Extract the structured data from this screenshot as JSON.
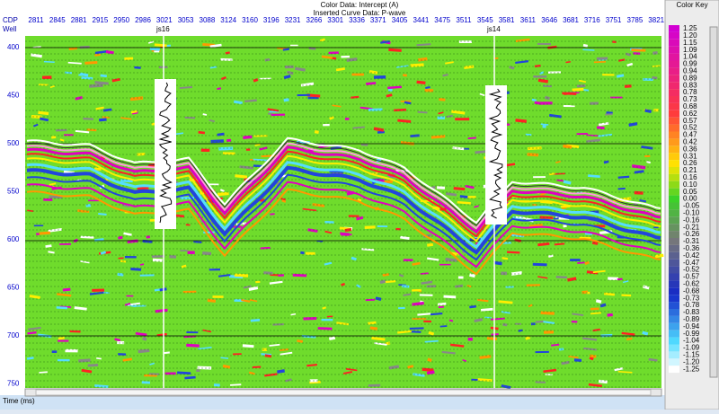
{
  "header": {
    "color_data": "Color Data: Intercept (A)",
    "curve_data": "Inserted Curve Data: P-wave"
  },
  "axis": {
    "cdp_title": "CDP",
    "well_title": "Well",
    "time_title": "Time (ms)",
    "cdp_labels": [
      "2811",
      "2845",
      "2881",
      "2915",
      "2950",
      "2986",
      "3021",
      "3053",
      "3088",
      "3124",
      "3160",
      "3196",
      "3231",
      "3266",
      "3301",
      "3336",
      "3371",
      "3405",
      "3441",
      "3475",
      "3511",
      "3545",
      "3581",
      "3611",
      "3646",
      "3681",
      "3716",
      "3751",
      "3785",
      "3821"
    ],
    "time_labels": [
      "400",
      "450",
      "500",
      "550",
      "600",
      "650",
      "700",
      "750"
    ]
  },
  "wells": [
    {
      "name": "js16"
    },
    {
      "name": "js14"
    }
  ],
  "color_key": {
    "title": "Color Key",
    "labels": [
      "1.25",
      "1.20",
      "1.15",
      "1.09",
      "1.04",
      "0.99",
      "0.94",
      "0.89",
      "0.83",
      "0.78",
      "0.73",
      "0.68",
      "0.62",
      "0.57",
      "0.52",
      "0.47",
      "0.42",
      "0.36",
      "0.31",
      "0.26",
      "0.21",
      "0.16",
      "0.10",
      "0.05",
      "0.00",
      "-0.05",
      "-0.10",
      "-0.16",
      "-0.21",
      "-0.26",
      "-0.31",
      "-0.36",
      "-0.42",
      "-0.47",
      "-0.52",
      "-0.57",
      "-0.62",
      "-0.68",
      "-0.73",
      "-0.78",
      "-0.83",
      "-0.89",
      "-0.94",
      "-0.99",
      "-1.04",
      "-1.09",
      "-1.15",
      "-1.20",
      "-1.25"
    ]
  }
}
